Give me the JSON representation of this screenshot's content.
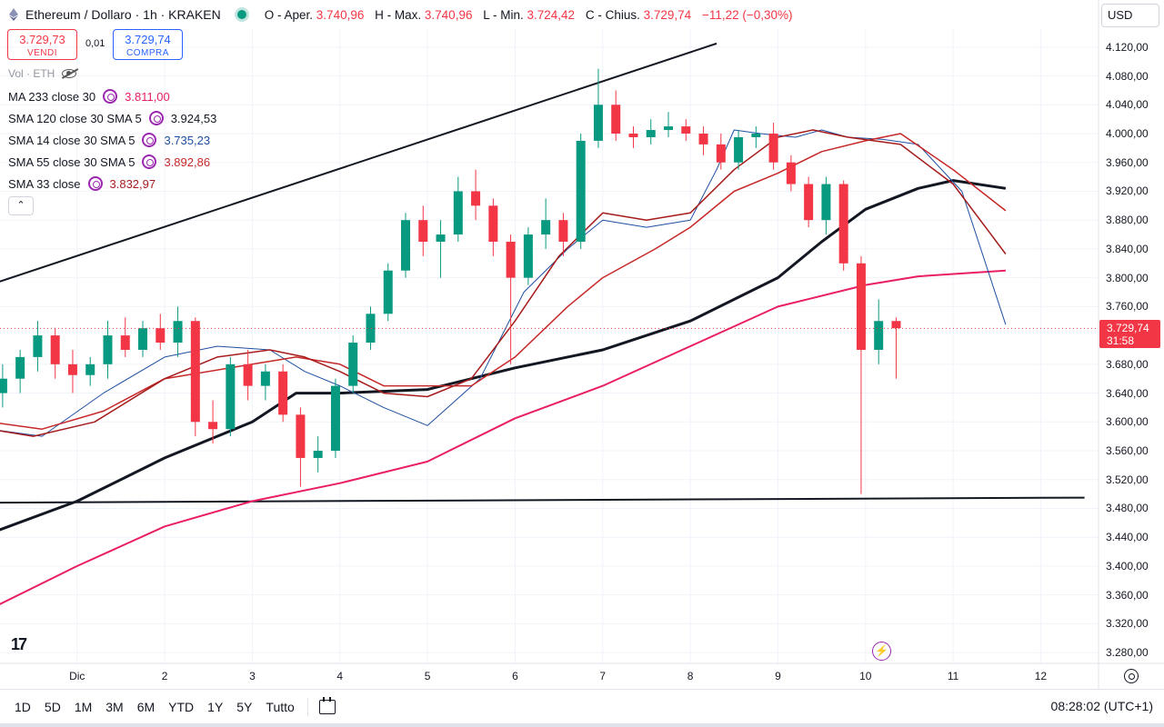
{
  "header": {
    "title": "Ethereum / Dollaro · 1h · KRAKEN",
    "open_label": "O - Aper.",
    "open_value": "3.740,96",
    "high_label": "H - Max.",
    "high_value": "3.740,96",
    "low_label": "L - Min.",
    "low_value": "3.724,42",
    "close_label": "C - Chius.",
    "close_value": "3.729,74",
    "change_value": "−11,22 (−0,30%)"
  },
  "trade": {
    "sell_price": "3.729,73",
    "sell_label": "VENDI",
    "spread": "0,01",
    "buy_price": "3.729,74",
    "buy_label": "COMPRA"
  },
  "volume_label": "Vol · ETH",
  "indicators": [
    {
      "label": "MA 233 close 30",
      "value": "3.811,00",
      "color": "#e91e63"
    },
    {
      "label": "SMA 120 close 30 SMA 5",
      "value": "3.924,53",
      "color": "#131722"
    },
    {
      "label": "SMA 14 close 30 SMA 5",
      "value": "3.735,23",
      "color": "#1e4fa0"
    },
    {
      "label": "SMA 55 close 30 SMA 5",
      "value": "3.892,86",
      "color": "#c62828"
    },
    {
      "label": "SMA 33 close",
      "value": "3.832,97",
      "color": "#a61b1b"
    }
  ],
  "collapse_label": "⌃",
  "currency": "USD",
  "last_price": {
    "value": "3.729,74",
    "countdown": "31:58"
  },
  "bottom_bar": {
    "ranges": [
      "1D",
      "5D",
      "1M",
      "3M",
      "6M",
      "YTD",
      "1Y",
      "5Y",
      "Tutto"
    ],
    "clock": "08:28:02 (UTC+1)"
  },
  "icons": {
    "logo": "tradingview-logo",
    "bolt": "lightning-icon",
    "settings": "gear-icon",
    "calendar": "calendar-icon"
  },
  "chart_data": {
    "type": "candlestick",
    "symbol": "ETH/USD",
    "interval": "1h",
    "exchange": "KRAKEN",
    "y_tick_labels": [
      "4.120,00",
      "4.080,00",
      "4.040,00",
      "4.000,00",
      "3.960,00",
      "3.920,00",
      "3.880,00",
      "3.840,00",
      "3.800,00",
      "3.760,00",
      "3.680,00",
      "3.640,00",
      "3.600,00",
      "3.560,00",
      "3.520,00",
      "3.480,00",
      "3.440,00",
      "3.400,00",
      "3.360,00",
      "3.320,00",
      "3.280,00"
    ],
    "y_ticks": [
      4120,
      4080,
      4040,
      4000,
      3960,
      3920,
      3880,
      3840,
      3800,
      3760,
      3680,
      3640,
      3600,
      3560,
      3520,
      3480,
      3440,
      3400,
      3360,
      3320,
      3280
    ],
    "ylim": [
      3265,
      4145
    ],
    "x_tick_labels": [
      "Dic",
      "2",
      "3",
      "4",
      "5",
      "6",
      "7",
      "8",
      "9",
      "10",
      "11",
      "12"
    ],
    "x_ticks_day": [
      1,
      2,
      3,
      4,
      5,
      6,
      7,
      8,
      9,
      10,
      11,
      12
    ],
    "xlim_day": [
      0.12,
      12.66
    ],
    "grid": true,
    "last_price": 3729.74,
    "price_line": 3729.74,
    "candles_day_ohlc": [
      [
        0.15,
        3640,
        3680,
        3620,
        3660
      ],
      [
        0.35,
        3660,
        3700,
        3640,
        3690
      ],
      [
        0.55,
        3690,
        3740,
        3670,
        3720
      ],
      [
        0.75,
        3720,
        3730,
        3660,
        3680
      ],
      [
        0.95,
        3680,
        3700,
        3640,
        3665
      ],
      [
        1.15,
        3665,
        3690,
        3650,
        3680
      ],
      [
        1.35,
        3680,
        3740,
        3660,
        3720
      ],
      [
        1.55,
        3720,
        3745,
        3690,
        3700
      ],
      [
        1.75,
        3700,
        3740,
        3690,
        3730
      ],
      [
        1.95,
        3730,
        3750,
        3700,
        3710
      ],
      [
        2.15,
        3710,
        3760,
        3690,
        3740
      ],
      [
        2.35,
        3740,
        3745,
        3580,
        3600
      ],
      [
        2.55,
        3600,
        3630,
        3570,
        3590
      ],
      [
        2.75,
        3590,
        3690,
        3580,
        3680
      ],
      [
        2.95,
        3680,
        3700,
        3630,
        3650
      ],
      [
        3.15,
        3650,
        3680,
        3630,
        3670
      ],
      [
        3.35,
        3670,
        3680,
        3600,
        3610
      ],
      [
        3.55,
        3610,
        3620,
        3510,
        3550
      ],
      [
        3.75,
        3550,
        3580,
        3530,
        3560
      ],
      [
        3.95,
        3560,
        3660,
        3550,
        3650
      ],
      [
        4.15,
        3650,
        3720,
        3640,
        3710
      ],
      [
        4.35,
        3710,
        3760,
        3700,
        3750
      ],
      [
        4.55,
        3750,
        3820,
        3740,
        3810
      ],
      [
        4.75,
        3810,
        3890,
        3800,
        3880
      ],
      [
        4.95,
        3880,
        3900,
        3830,
        3850
      ],
      [
        5.15,
        3850,
        3880,
        3800,
        3860
      ],
      [
        5.35,
        3860,
        3940,
        3850,
        3920
      ],
      [
        5.55,
        3920,
        3950,
        3880,
        3900
      ],
      [
        5.75,
        3900,
        3910,
        3830,
        3850
      ],
      [
        5.95,
        3850,
        3860,
        3680,
        3800
      ],
      [
        6.15,
        3800,
        3870,
        3790,
        3860
      ],
      [
        6.35,
        3860,
        3910,
        3840,
        3880
      ],
      [
        6.55,
        3880,
        3890,
        3830,
        3850
      ],
      [
        6.75,
        3850,
        4000,
        3840,
        3990
      ],
      [
        6.95,
        3990,
        4090,
        3980,
        4040
      ],
      [
        7.15,
        4040,
        4060,
        3990,
        4000
      ],
      [
        7.35,
        4000,
        4010,
        3980,
        3995
      ],
      [
        7.55,
        3995,
        4020,
        3985,
        4005
      ],
      [
        7.75,
        4005,
        4030,
        3995,
        4010
      ],
      [
        7.95,
        4010,
        4020,
        3990,
        4000
      ],
      [
        8.15,
        4000,
        4010,
        3970,
        3985
      ],
      [
        8.35,
        3985,
        4000,
        3950,
        3960
      ],
      [
        8.55,
        3960,
        4005,
        3950,
        3995
      ],
      [
        8.75,
        3995,
        4010,
        3980,
        4000
      ],
      [
        8.95,
        4000,
        4015,
        3950,
        3960
      ],
      [
        9.15,
        3960,
        3970,
        3920,
        3930
      ],
      [
        9.35,
        3930,
        3940,
        3870,
        3880
      ],
      [
        9.55,
        3880,
        3940,
        3860,
        3930
      ],
      [
        9.75,
        3930,
        3935,
        3810,
        3820
      ],
      [
        9.95,
        3820,
        3830,
        3500,
        3700
      ],
      [
        10.15,
        3700,
        3770,
        3680,
        3740
      ],
      [
        10.35,
        3740,
        3745,
        3660,
        3730
      ]
    ],
    "series": [
      {
        "name": "MA 233 close 30",
        "color": "#e91e63",
        "width": 2,
        "points": [
          [
            0.0,
            3340
          ],
          [
            1.0,
            3400
          ],
          [
            2.0,
            3455
          ],
          [
            3.0,
            3490
          ],
          [
            4.0,
            3515
          ],
          [
            5.0,
            3545
          ],
          [
            6.0,
            3605
          ],
          [
            7.0,
            3650
          ],
          [
            8.0,
            3705
          ],
          [
            9.0,
            3760
          ],
          [
            10.0,
            3790
          ],
          [
            10.6,
            3802
          ],
          [
            11.6,
            3810
          ]
        ]
      },
      {
        "name": "SMA 120 close 30 SMA 5",
        "color": "#131722",
        "width": 3,
        "points": [
          [
            0.0,
            3445
          ],
          [
            1.0,
            3490
          ],
          [
            2.0,
            3550
          ],
          [
            3.0,
            3600
          ],
          [
            3.5,
            3640
          ],
          [
            4.0,
            3640
          ],
          [
            5.0,
            3645
          ],
          [
            6.0,
            3675
          ],
          [
            7.0,
            3700
          ],
          [
            8.0,
            3740
          ],
          [
            9.0,
            3800
          ],
          [
            9.5,
            3850
          ],
          [
            10.0,
            3895
          ],
          [
            10.6,
            3924
          ],
          [
            11.0,
            3935
          ],
          [
            11.6,
            3924
          ]
        ]
      },
      {
        "name": "SMA 14 close 30 SMA 5",
        "color": "#1e4fa0",
        "width": 1,
        "points": [
          [
            0.0,
            3590
          ],
          [
            0.6,
            3580
          ],
          [
            1.3,
            3640
          ],
          [
            2.0,
            3690
          ],
          [
            2.6,
            3705
          ],
          [
            3.2,
            3700
          ],
          [
            3.6,
            3670
          ],
          [
            4.0,
            3650
          ],
          [
            4.5,
            3620
          ],
          [
            5.0,
            3595
          ],
          [
            5.6,
            3660
          ],
          [
            6.1,
            3780
          ],
          [
            6.6,
            3840
          ],
          [
            7.0,
            3880
          ],
          [
            7.5,
            3870
          ],
          [
            8.0,
            3880
          ],
          [
            8.3,
            3950
          ],
          [
            8.5,
            4005
          ],
          [
            8.8,
            4000
          ],
          [
            9.2,
            3995
          ],
          [
            9.5,
            4005
          ],
          [
            9.8,
            3995
          ],
          [
            10.2,
            3992
          ],
          [
            10.6,
            3985
          ],
          [
            11.1,
            3920
          ],
          [
            11.6,
            3735
          ]
        ]
      },
      {
        "name": "SMA 55 close 30 SMA 5",
        "color": "#c62828",
        "width": 1.5,
        "points": [
          [
            0.0,
            3600
          ],
          [
            0.6,
            3590
          ],
          [
            1.3,
            3615
          ],
          [
            2.0,
            3660
          ],
          [
            3.0,
            3680
          ],
          [
            3.5,
            3690
          ],
          [
            4.0,
            3680
          ],
          [
            4.5,
            3650
          ],
          [
            5.0,
            3650
          ],
          [
            5.5,
            3650
          ],
          [
            6.0,
            3690
          ],
          [
            6.6,
            3760
          ],
          [
            7.0,
            3800
          ],
          [
            7.6,
            3840
          ],
          [
            8.0,
            3870
          ],
          [
            8.5,
            3920
          ],
          [
            9.0,
            3945
          ],
          [
            9.5,
            3975
          ],
          [
            10.0,
            3990
          ],
          [
            10.4,
            4000
          ],
          [
            11.0,
            3950
          ],
          [
            11.6,
            3893
          ]
        ]
      },
      {
        "name": "SMA 33 close",
        "color": "#a61b1b",
        "width": 1.5,
        "points": [
          [
            0.0,
            3590
          ],
          [
            0.5,
            3580
          ],
          [
            1.2,
            3600
          ],
          [
            2.0,
            3660
          ],
          [
            2.6,
            3690
          ],
          [
            3.2,
            3700
          ],
          [
            3.6,
            3690
          ],
          [
            4.0,
            3670
          ],
          [
            4.5,
            3640
          ],
          [
            5.0,
            3635
          ],
          [
            5.5,
            3660
          ],
          [
            6.0,
            3740
          ],
          [
            6.5,
            3830
          ],
          [
            7.0,
            3890
          ],
          [
            7.5,
            3880
          ],
          [
            8.0,
            3890
          ],
          [
            8.5,
            3950
          ],
          [
            9.0,
            3995
          ],
          [
            9.4,
            4005
          ],
          [
            9.8,
            3995
          ],
          [
            10.4,
            3985
          ],
          [
            11.0,
            3930
          ],
          [
            11.6,
            3833
          ]
        ]
      }
    ],
    "trendlines": [
      {
        "points": [
          [
            0.0,
            3790
          ],
          [
            8.3,
            4125
          ]
        ],
        "color": "#131722"
      },
      {
        "points": [
          [
            0.0,
            3488
          ],
          [
            12.5,
            3495
          ]
        ],
        "color": "#131722"
      }
    ]
  }
}
